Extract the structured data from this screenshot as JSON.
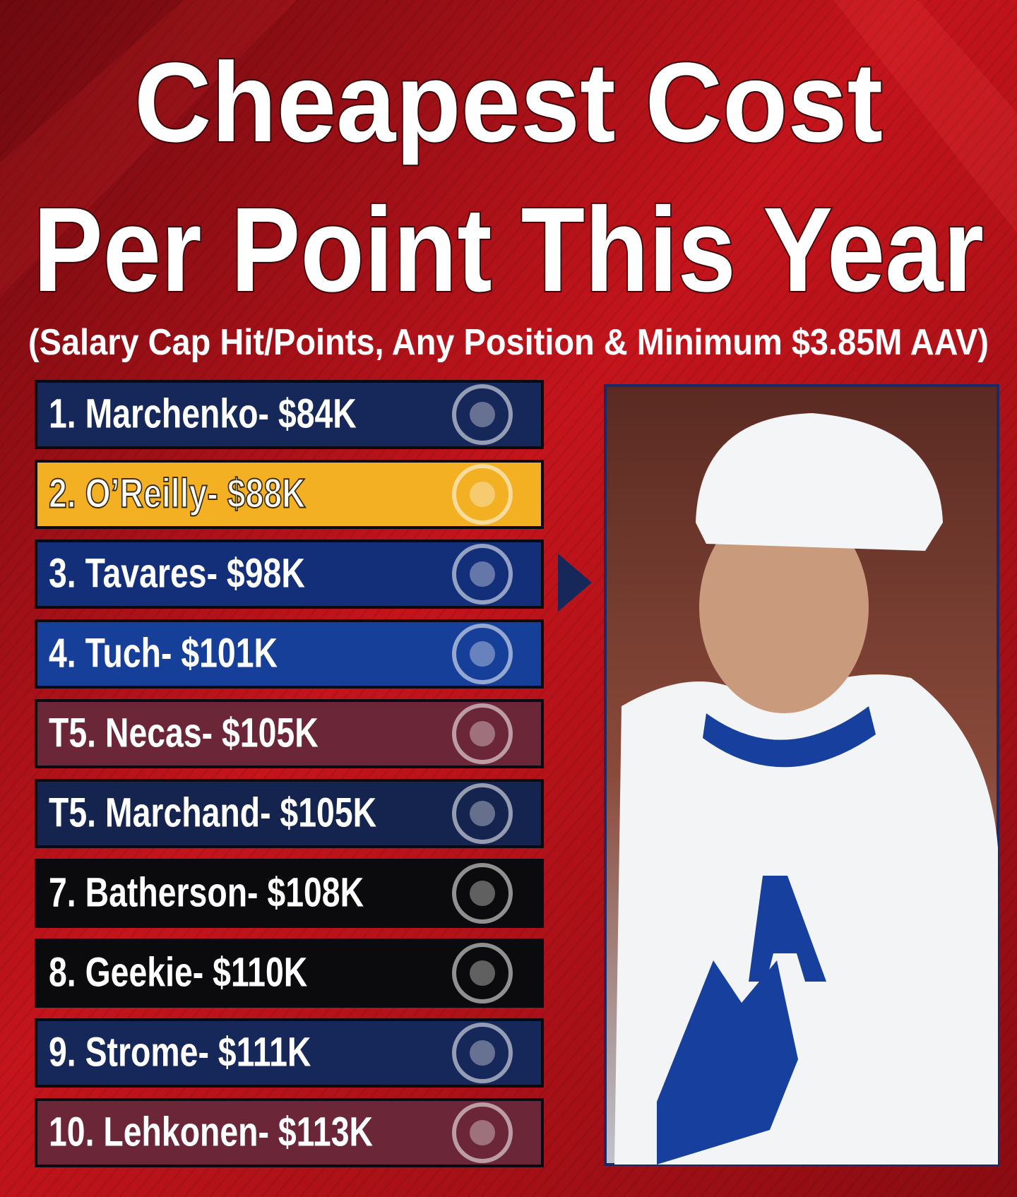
{
  "header": {
    "title_line_1": "Cheapest Cost",
    "title_line_2": "Per Point This Year",
    "subtitle": "(Salary Cap Hit/Points, Any Position & Minimum $3.85M AAV)"
  },
  "list": {
    "items": [
      {
        "label": "1. Marchenko- $84K",
        "color": "#16275a"
      },
      {
        "label": "2. O’Reilly- $88K",
        "color": "#f2b022"
      },
      {
        "label": "3. Tavares- $98K",
        "color": "#132f7a"
      },
      {
        "label": "4. Tuch- $101K",
        "color": "#163f9a"
      },
      {
        "label": "T5. Necas- $105K",
        "color": "#6b2638"
      },
      {
        "label": "T5. Marchand- $105K",
        "color": "#14244f"
      },
      {
        "label": "7. Batherson- $108K",
        "color": "#0b0b0d"
      },
      {
        "label": "8. Geekie- $110K",
        "color": "#0b0b0d"
      },
      {
        "label": "9. Strome- $111K",
        "color": "#16275a"
      },
      {
        "label": "10. Lehkonen- $113K",
        "color": "#6b2638"
      }
    ]
  }
}
